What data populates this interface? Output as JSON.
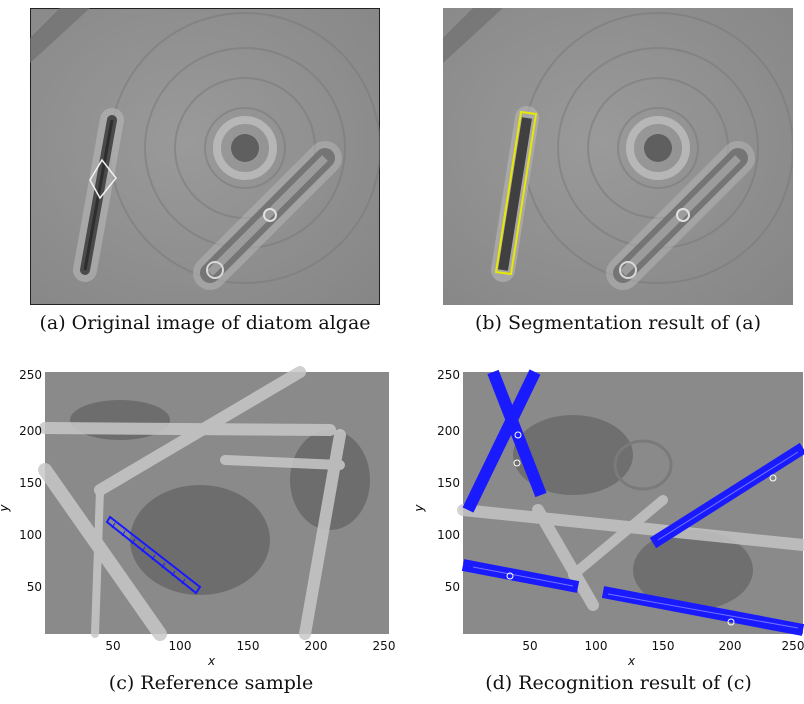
{
  "figure": {
    "panels": [
      {
        "id": "a",
        "caption": "(a)  Original image of diatom algae"
      },
      {
        "id": "b",
        "caption": "(b)  Segmentation result of (a)"
      },
      {
        "id": "c",
        "caption": "(c)  Reference sample",
        "axes": {
          "xlabel": "x",
          "ylabel": "y",
          "xticks": [
            "50",
            "100",
            "150",
            "200",
            "250"
          ],
          "yticks": [
            "50",
            "100",
            "150",
            "200",
            "250"
          ]
        }
      },
      {
        "id": "d",
        "caption": "(d)  Recognition result of (c)",
        "axes": {
          "xlabel": "x",
          "ylabel": "y",
          "xticks": [
            "50",
            "100",
            "150",
            "200",
            "250"
          ],
          "yticks": [
            "50",
            "100",
            "150",
            "200",
            "250"
          ]
        }
      }
    ]
  },
  "colors": {
    "overlay_blue": "#1a1aff",
    "segmentation_yellow": "#e8e800",
    "background_gray": "#8d8d8d"
  }
}
